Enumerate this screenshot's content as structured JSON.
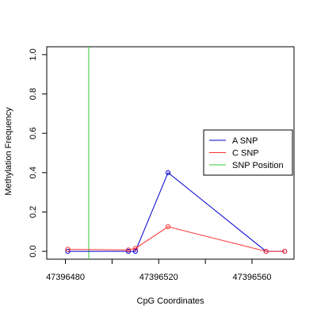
{
  "chart_data": {
    "type": "line",
    "title": "",
    "xlabel": "CpG Coordinates",
    "ylabel": "Methylation Frequency",
    "xlim": [
      47396472,
      47396578
    ],
    "ylim": [
      -0.04,
      1.04
    ],
    "x_ticks": [
      47396480,
      47396500,
      47396520,
      47396540,
      47396560
    ],
    "x_tick_labels": [
      "47396480",
      "",
      "47396520",
      "",
      "47396560"
    ],
    "y_ticks": [
      0.0,
      0.2,
      0.4,
      0.6,
      0.8,
      1.0
    ],
    "y_tick_labels": [
      "0.0",
      "0.2",
      "0.4",
      "0.6",
      "0.8",
      "1.0"
    ],
    "grid": false,
    "legend_position": "right",
    "series": [
      {
        "name": "A SNP",
        "color": "#0000cc",
        "x": [
          47396481,
          47396507,
          47396510,
          47396524,
          47396566,
          47396574
        ],
        "values": [
          0.0,
          0.0,
          0.0,
          0.4,
          0.0,
          0.0
        ]
      },
      {
        "name": "C SNP",
        "color": "#ff3333",
        "x": [
          47396481,
          47396507,
          47396510,
          47396524,
          47396566,
          47396574
        ],
        "values": [
          0.01,
          0.007,
          0.015,
          0.125,
          0.0,
          0.0
        ]
      }
    ],
    "snp_position": {
      "name": "SNP Position",
      "color": "#33cc33",
      "x": 47396490
    },
    "legend": [
      {
        "label": "A SNP",
        "color": "#0000cc"
      },
      {
        "label": "C SNP",
        "color": "#ff3333"
      },
      {
        "label": "SNP Position",
        "color": "#33cc33"
      }
    ]
  }
}
